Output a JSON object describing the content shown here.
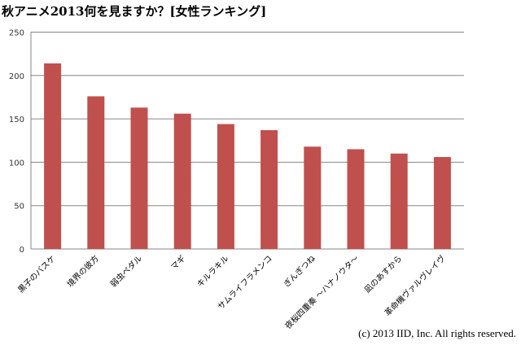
{
  "chart_data": {
    "type": "bar",
    "title": "秋アニメ2013何を見ますか？[女性ランキング]",
    "categories": [
      "黒子のバスケ",
      "境界の彼方",
      "弱虫ペダル",
      "マギ",
      "キルラキル",
      "サムライフラメンコ",
      "ぎんぎつね",
      "夜桜四重奏 ～ハナノウタ～",
      "凪のあすから",
      "革命機ヴァルヴレイヴ"
    ],
    "values": [
      214,
      176,
      163,
      156,
      144,
      137,
      118,
      115,
      110,
      106
    ],
    "ylim": [
      0,
      250
    ],
    "yticks": [
      0,
      50,
      100,
      150,
      200,
      250
    ],
    "grid": true,
    "bar_color": "#c0504d",
    "xlabel": "",
    "ylabel": ""
  },
  "copyright": "(c) 2013 IID, Inc. All rights reserved."
}
